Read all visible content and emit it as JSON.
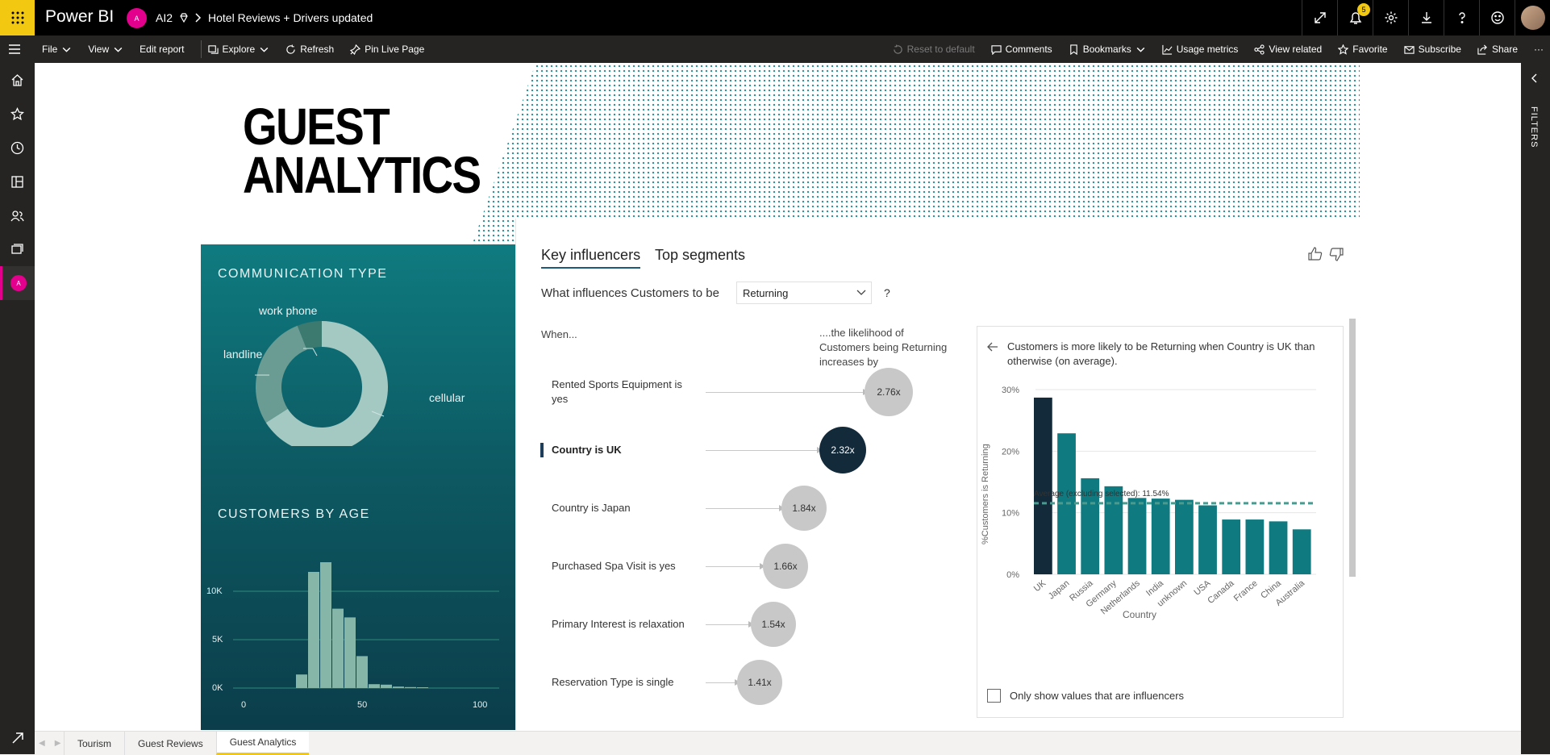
{
  "app": {
    "name": "Power BI",
    "workspace_initial": "A",
    "workspace": "AI2",
    "report": "Hotel Reviews + Drivers updated",
    "notification_count": "5"
  },
  "toolbar": {
    "file": "File",
    "view": "View",
    "edit": "Edit report",
    "explore": "Explore",
    "refresh": "Refresh",
    "pin": "Pin Live Page",
    "reset": "Reset to default",
    "comments": "Comments",
    "bookmarks": "Bookmarks",
    "usage": "Usage metrics",
    "related": "View related",
    "favorite": "Favorite",
    "subscribe": "Subscribe",
    "share": "Share",
    "more": "···"
  },
  "rightpane": {
    "label": "FILTERS"
  },
  "report": {
    "title_line1": "GUEST",
    "title_line2": "ANALYTICS",
    "comm_title": "COMMUNICATION TYPE",
    "age_title": "CUSTOMERS BY AGE",
    "donut_labels": [
      "work phone",
      "landline",
      "cellular"
    ],
    "age_axis": {
      "y_ticks": [
        "10K",
        "5K",
        "0K"
      ],
      "x_ticks": [
        "0",
        "50",
        "100"
      ]
    }
  },
  "chart_data": [
    {
      "type": "pie",
      "title": "COMMUNICATION TYPE",
      "categories": [
        "cellular",
        "landline",
        "work phone"
      ],
      "values": [
        66,
        28,
        6
      ]
    },
    {
      "type": "bar",
      "title": "CUSTOMERS BY AGE",
      "categories": [
        "10",
        "15",
        "20",
        "25",
        "30",
        "35",
        "40",
        "45",
        "50",
        "55",
        "60",
        "65",
        "70",
        "75",
        "80",
        "85",
        "90"
      ],
      "values": [
        0,
        0,
        0,
        1400,
        12000,
        13000,
        8200,
        7300,
        3300,
        400,
        350,
        150,
        100,
        80,
        0,
        0,
        0
      ],
      "ylim": [
        0,
        13000
      ],
      "xlim": [
        0,
        100
      ]
    },
    {
      "type": "bar",
      "title": "Customers is more likely to be Returning when Country is UK than otherwise (on average).",
      "xlabel": "Country",
      "ylabel": "%Customers is Returning",
      "categories": [
        "UK",
        "Japan",
        "Russia",
        "Germany",
        "Netherlands",
        "India",
        "unknown",
        "USA",
        "Canada",
        "France",
        "China",
        "Australia"
      ],
      "values": [
        28.7,
        22.9,
        15.6,
        14.3,
        12.4,
        12.3,
        12.1,
        11.2,
        8.9,
        8.9,
        8.6,
        7.3
      ],
      "ylim": [
        0,
        30
      ],
      "y_ticks": [
        "30%",
        "20%",
        "10%",
        "0%"
      ],
      "reference": {
        "label": "Average (excluding selected): 11.54%",
        "value": 11.54
      }
    }
  ],
  "influencers": {
    "tab_key": "Key influencers",
    "tab_segments": "Top segments",
    "question": "What influences Customers to be",
    "selected": "Returning",
    "qmark": "?",
    "when": "When...",
    "likely": "....the likelihood of Customers being Returning increases by",
    "rows": [
      {
        "label": "Rented Sports Equipment is yes",
        "value": "2.76x"
      },
      {
        "label": "Country is UK",
        "value": "2.32x"
      },
      {
        "label": "Country is Japan",
        "value": "1.84x"
      },
      {
        "label": "Purchased Spa Visit is yes",
        "value": "1.66x"
      },
      {
        "label": "Primary Interest is relaxation",
        "value": "1.54x"
      },
      {
        "label": "Reservation Type is single",
        "value": "1.41x"
      }
    ],
    "detail_checkbox": "Only show values that are influencers"
  },
  "tabs": [
    "Tourism",
    "Guest Reviews",
    "Guest Analytics"
  ]
}
